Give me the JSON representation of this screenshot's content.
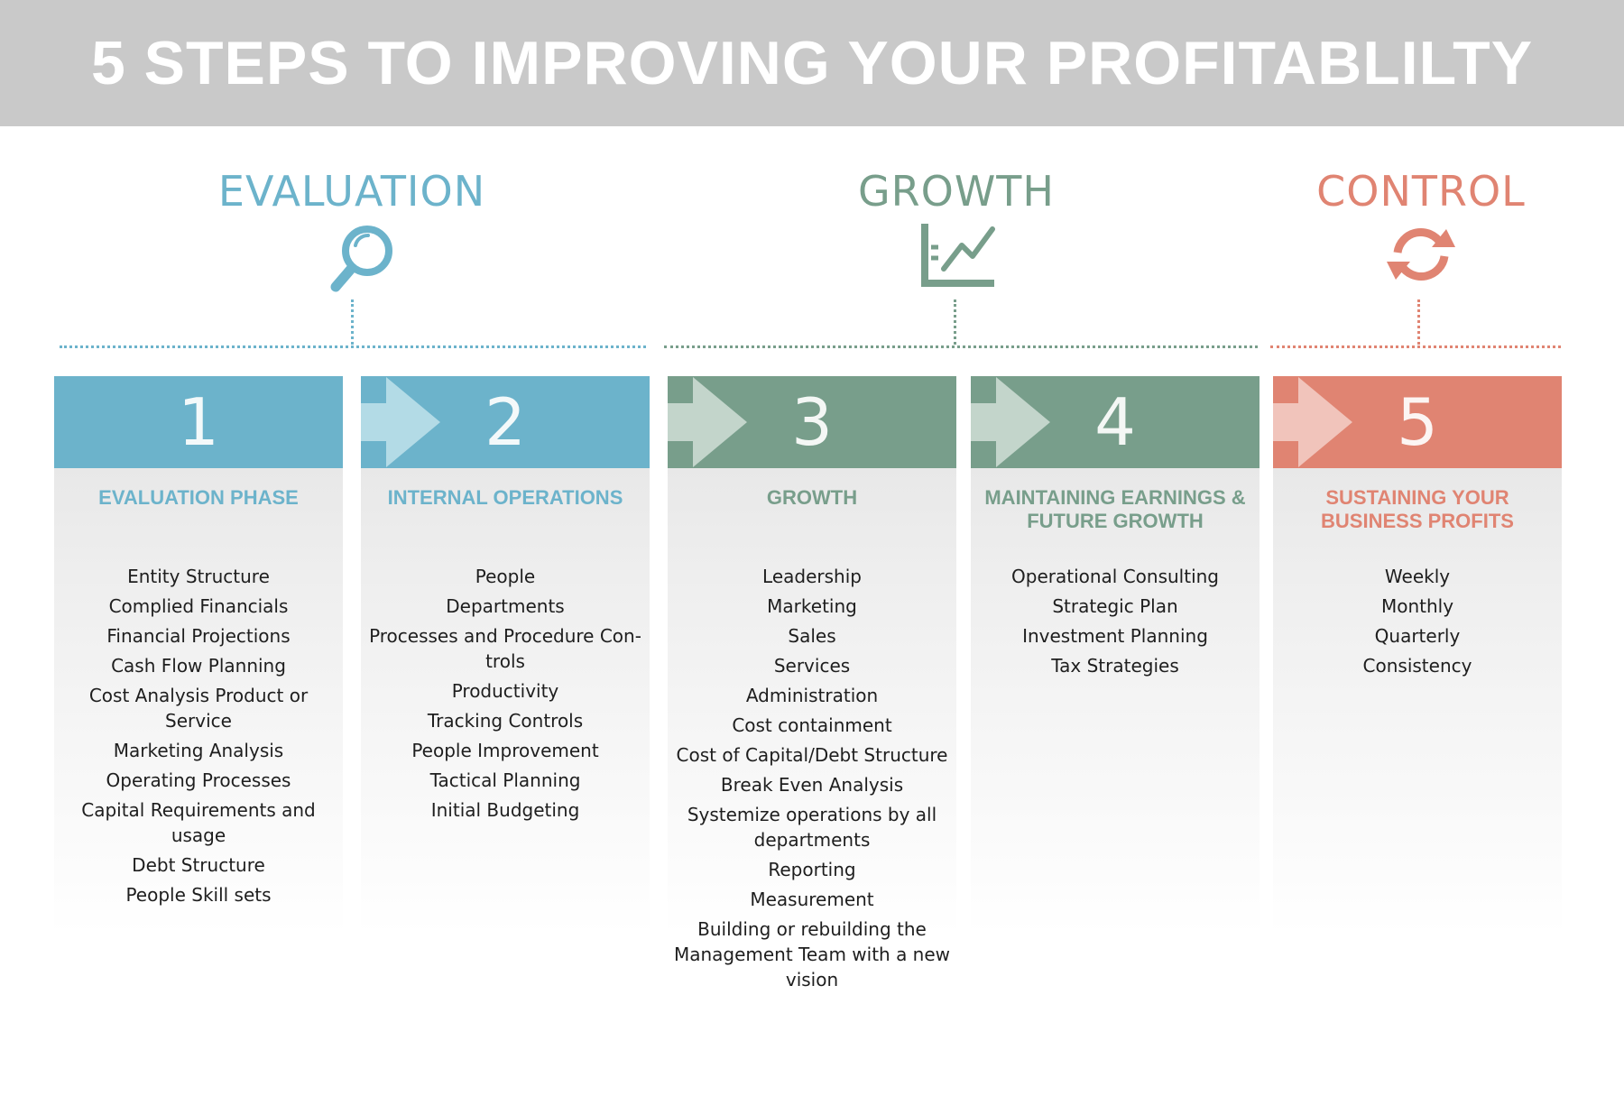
{
  "title": "5 STEPS TO IMPROVING YOUR PROFITABLILTY",
  "colors": {
    "banner": "#c9c9c9",
    "evaluation": "#6cb3cb",
    "growth": "#789e8b",
    "control": "#e08472",
    "arrow_blue": "#b3dbe6",
    "arrow_green": "#c3d5cb",
    "arrow_red": "#f1c4bb"
  },
  "phases": [
    {
      "label": "EVALUATION",
      "icon": "magnifier-icon",
      "color": "#6cb3cb"
    },
    {
      "label": "GROWTH",
      "icon": "growth-chart-icon",
      "color": "#789e8b"
    },
    {
      "label": "CONTROL",
      "icon": "refresh-cycle-icon",
      "color": "#e08472"
    }
  ],
  "steps": [
    {
      "number": "1",
      "title": "EVALUATION PHASE",
      "color": "#6cb3cb",
      "items": [
        "Entity Structure",
        "Complied Financials",
        "Financial Projections",
        "Cash Flow Planning",
        "Cost Analysis Product or Service",
        "Marketing Analysis",
        "Operating Processes",
        "Capital Requirements and usage",
        "Debt Structure",
        "People Skill sets"
      ]
    },
    {
      "number": "2",
      "title": "INTERNAL OPERATIONS",
      "color": "#6cb3cb",
      "items": [
        "People",
        "Departments",
        "Processes and Procedure Con-trols",
        "Productivity",
        "Tracking Controls",
        "People Improvement",
        "Tactical Planning",
        "Initial Budgeting"
      ]
    },
    {
      "number": "3",
      "title": "GROWTH",
      "color": "#789e8b",
      "items": [
        "Leadership",
        "Marketing",
        "Sales",
        "Services",
        "Administration",
        "Cost containment",
        "Cost of Capital/Debt Structure",
        "Break Even Analysis",
        "Systemize operations by all departments",
        "Reporting",
        "Measurement",
        "Building or rebuilding the Management Team with a new vision"
      ]
    },
    {
      "number": "4",
      "title": "MAINTAINING EARNINGS & FUTURE GROWTH",
      "color": "#789e8b",
      "items": [
        "Operational Consulting",
        "Strategic Plan",
        "Investment Planning",
        "Tax Strategies"
      ]
    },
    {
      "number": "5",
      "title": "SUSTAINING YOUR BUSINESS PROFITS",
      "color": "#e08472",
      "items": [
        "Weekly",
        "Monthly",
        "Quarterly",
        "Consistency"
      ]
    }
  ]
}
